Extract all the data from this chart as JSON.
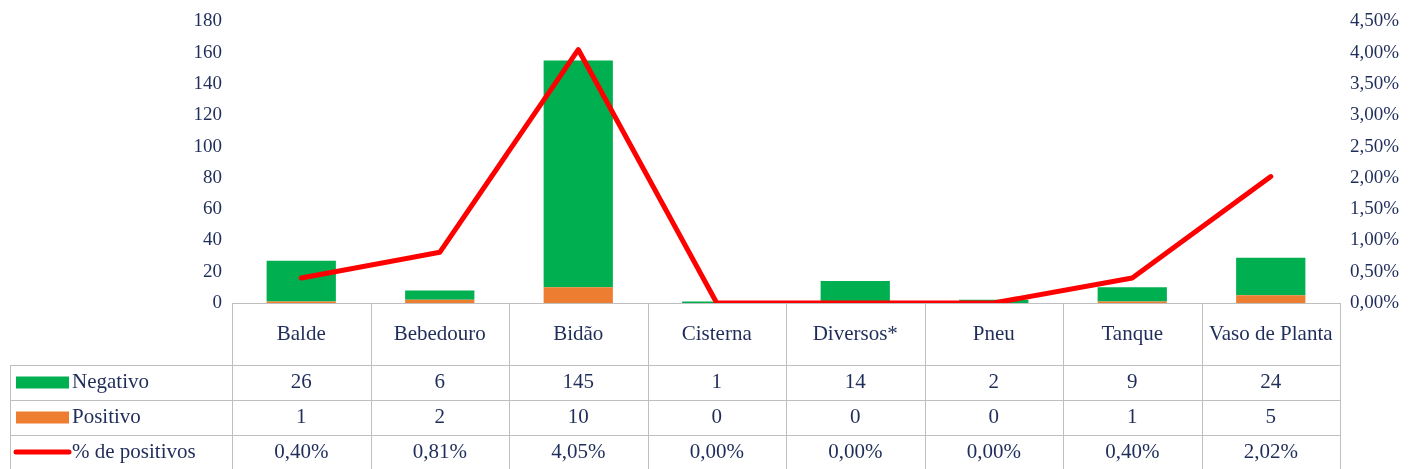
{
  "chart_data": {
    "type": "bar",
    "stacked": true,
    "categories": [
      "Balde",
      "Bebedouro",
      "Bidão",
      "Cisterna",
      "Diversos*",
      "Pneu",
      "Tanque",
      "Vaso de Planta"
    ],
    "series": [
      {
        "name": "Positivo",
        "color": "#ed7d31",
        "values": [
          1,
          2,
          10,
          0,
          0,
          0,
          1,
          5
        ],
        "value_labels": [
          "1",
          "2",
          "10",
          "0",
          "0",
          "0",
          "1",
          "5"
        ]
      },
      {
        "name": "Negativo",
        "color": "#00b050",
        "values": [
          26,
          6,
          145,
          1,
          14,
          2,
          9,
          24
        ],
        "value_labels": [
          "26",
          "6",
          "145",
          "1",
          "14",
          "2",
          "9",
          "24"
        ]
      },
      {
        "name": "% de positivos",
        "type": "line",
        "axis": "y2",
        "color": "#ff0000",
        "values": [
          0.4,
          0.81,
          4.05,
          0,
          0,
          0,
          0.4,
          2.02
        ],
        "value_labels": [
          "0,40%",
          "0,81%",
          "4,05%",
          "0,00%",
          "0,00%",
          "0,00%",
          "0,40%",
          "2,02%"
        ]
      }
    ],
    "ylim": [
      0,
      180
    ],
    "yticks": [
      0,
      20,
      40,
      60,
      80,
      100,
      120,
      140,
      160,
      180
    ],
    "y2lim": [
      0,
      4.5
    ],
    "y2ticks": [
      {
        "value": 0,
        "label": "0,00%"
      },
      {
        "value": 0.5,
        "label": "0,50%"
      },
      {
        "value": 1,
        "label": "1,00%"
      },
      {
        "value": 1.5,
        "label": "1,50%"
      },
      {
        "value": 2,
        "label": "2,00%"
      },
      {
        "value": 2.5,
        "label": "2,50%"
      },
      {
        "value": 3,
        "label": "3,00%"
      },
      {
        "value": 3.5,
        "label": "3,50%"
      },
      {
        "value": 4,
        "label": "4,00%"
      },
      {
        "value": 4.5,
        "label": "4,50%"
      }
    ],
    "grid": false,
    "legend": "bottom",
    "marker": "none"
  }
}
